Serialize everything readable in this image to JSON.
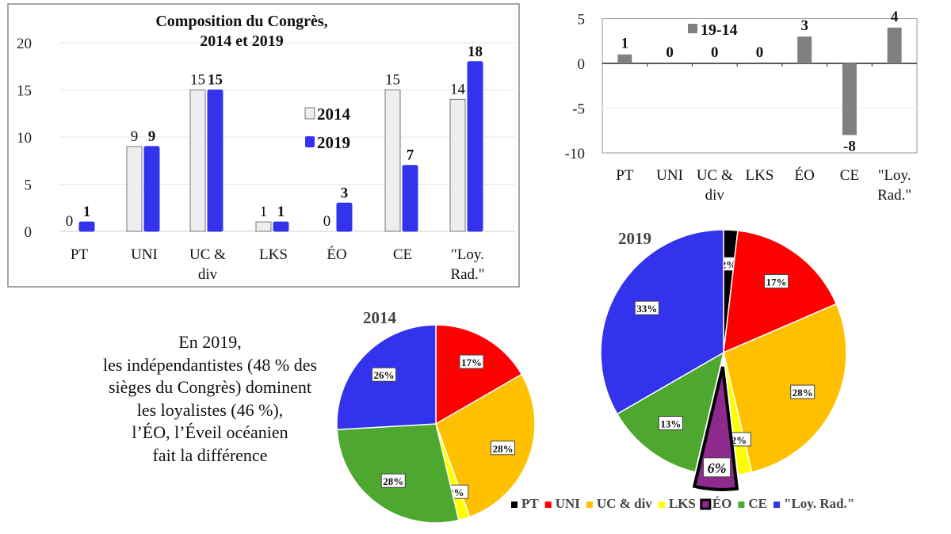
{
  "chart_data": [
    {
      "type": "bar",
      "title": "Composition du Congrès, 2014 et 2019",
      "title_lines": [
        "Composition du Congrès,",
        "2014 et 2019"
      ],
      "categories": [
        "PT",
        "UNI",
        "UC & div",
        "LKS",
        "ÉO",
        "CE",
        "\"Loy. Rad.\""
      ],
      "category_lines": [
        [
          "PT"
        ],
        [
          "UNI"
        ],
        [
          "UC &",
          "div"
        ],
        [
          "LKS"
        ],
        [
          "ÉO"
        ],
        [
          "CE"
        ],
        [
          "\"Loy.",
          "Rad.\""
        ]
      ],
      "series": [
        {
          "name": "2014",
          "values": [
            0,
            9,
            15,
            1,
            0,
            15,
            14
          ],
          "color": "#eeeeee"
        },
        {
          "name": "2019",
          "values": [
            1,
            9,
            15,
            1,
            3,
            7,
            18
          ],
          "color": "#3333ee"
        }
      ],
      "ylim": [
        0,
        20
      ],
      "yticks": [
        0,
        5,
        10,
        15,
        20
      ],
      "legend": "center-right",
      "grid": true
    },
    {
      "type": "bar",
      "title": "",
      "categories": [
        "PT",
        "UNI",
        "UC & div",
        "LKS",
        "ÉO",
        "CE",
        "\"Loy. Rad.\""
      ],
      "category_lines": [
        [
          "PT"
        ],
        [
          "UNI"
        ],
        [
          "UC &",
          "div"
        ],
        [
          "LKS"
        ],
        [
          "ÉO"
        ],
        [
          "CE"
        ],
        [
          "\"Loy.",
          "Rad.\""
        ]
      ],
      "series": [
        {
          "name": "19-14",
          "values": [
            1,
            0,
            0,
            0,
            3,
            -8,
            4
          ],
          "color": "#808080"
        }
      ],
      "ylim": [
        -10,
        5
      ],
      "yticks": [
        -10,
        -5,
        0,
        5
      ],
      "legend": "top-left",
      "grid": true
    },
    {
      "type": "pie",
      "title": "2014",
      "labels": [
        "UNI",
        "UC & div",
        "LKS",
        "CE",
        "\"Loy. Rad.\""
      ],
      "values": [
        9,
        15,
        1,
        15,
        14
      ],
      "percent_labels": [
        "17%",
        "28%",
        "2%",
        "28%",
        "26%"
      ],
      "colors": [
        "#ff0000",
        "#ffc000",
        "#ffff00",
        "#4ea72e",
        "#3333ee"
      ]
    },
    {
      "type": "pie",
      "title": "2019",
      "labels": [
        "PT",
        "UNI",
        "UC & div",
        "LKS",
        "ÉO",
        "CE",
        "\"Loy. Rad.\""
      ],
      "values": [
        1,
        9,
        15,
        1,
        3,
        7,
        18
      ],
      "percent_labels": [
        "2%",
        "17%",
        "28%",
        "2%",
        "6%",
        "13%",
        "33%"
      ],
      "colors": [
        "#000000",
        "#ff0000",
        "#ffc000",
        "#ffff00",
        "#8e2a8e",
        "#4ea72e",
        "#3333ee"
      ],
      "exploded": "ÉO"
    }
  ],
  "pie_legend": [
    {
      "label": "PT",
      "color": "#000000"
    },
    {
      "label": "UNI",
      "color": "#ff0000"
    },
    {
      "label": "UC & div",
      "color": "#ffc000"
    },
    {
      "label": "LKS",
      "color": "#ffff00"
    },
    {
      "label": "ÉO",
      "color": "#8e2a8e"
    },
    {
      "label": "CE",
      "color": "#4ea72e"
    },
    {
      "label": "\"Loy. Rad.\"",
      "color": "#3333ee"
    }
  ],
  "caption": [
    "En 2019,",
    "les indépendantistes (48 % des",
    "sièges du Congrès) dominent",
    "les loyalistes (46 %),",
    "l’ÉO, l’Éveil océanien",
    "fait la différence"
  ]
}
